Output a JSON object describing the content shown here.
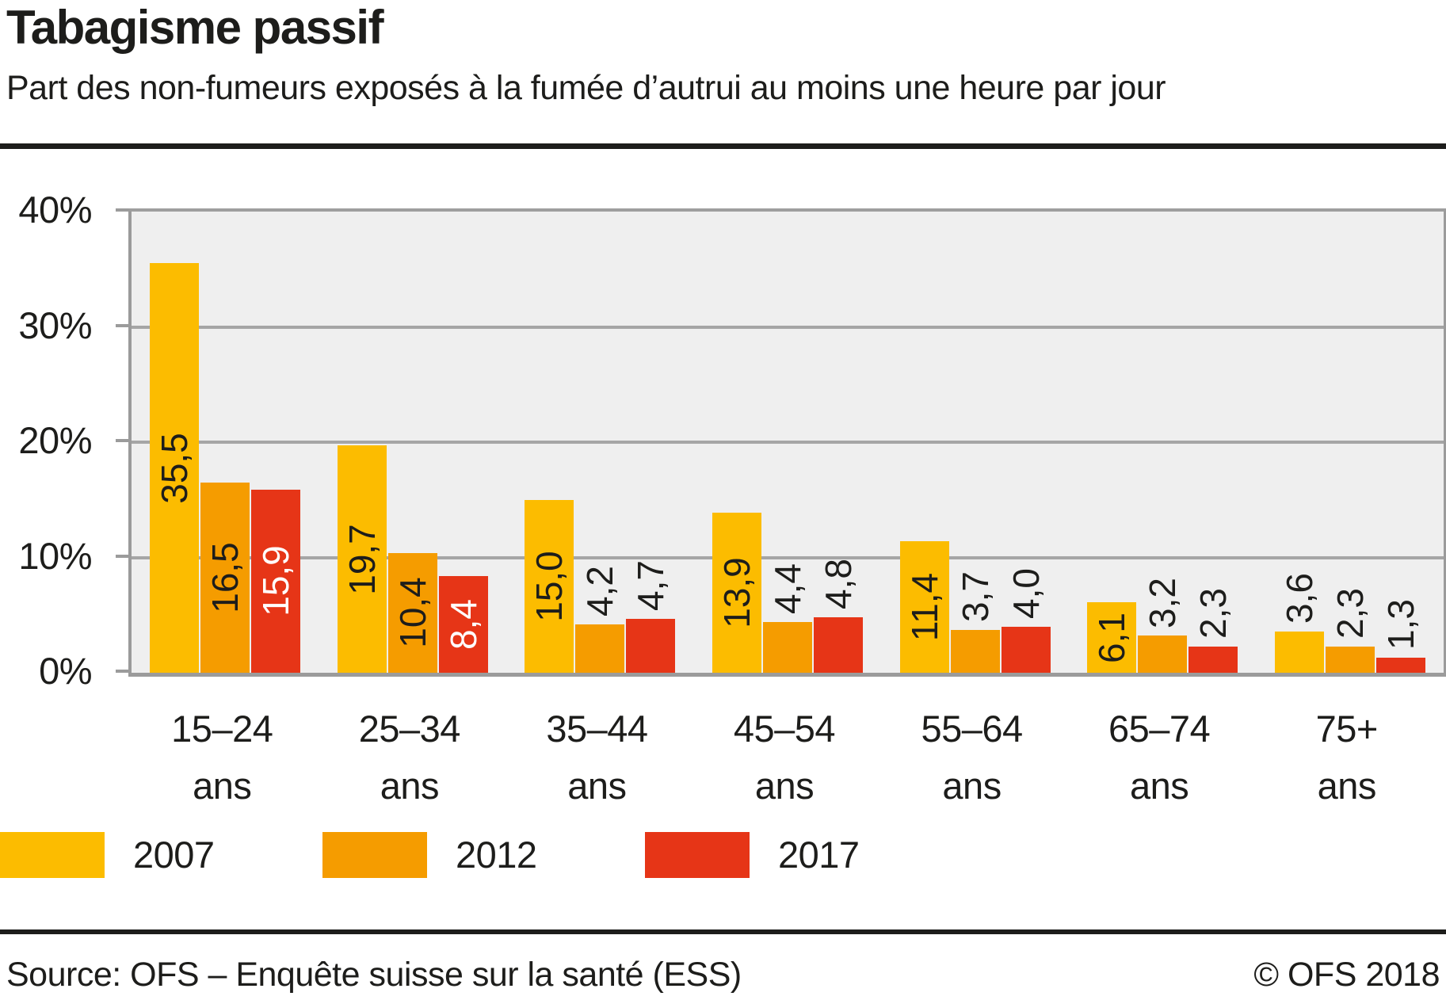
{
  "header": {
    "title": "Tabagisme passif",
    "subtitle": "Part des non-fumeurs exposés à la fumée d’autrui au moins une heure par jour"
  },
  "chart_data": {
    "type": "bar",
    "title": "Tabagisme passif",
    "subtitle": "Part des non-fumeurs exposés à la fumée d’autrui au moins une heure par jour",
    "categories": [
      "15–24 ans",
      "25–34 ans",
      "35–44 ans",
      "45–54 ans",
      "55–64 ans",
      "65–74 ans",
      "75+ ans"
    ],
    "series": [
      {
        "name": "2007",
        "color": "#fcbc00",
        "inside_label_color": "#1d1d1b",
        "values": [
          35.5,
          19.7,
          15.0,
          13.9,
          11.4,
          6.1,
          3.6
        ]
      },
      {
        "name": "2012",
        "color": "#f59c00",
        "inside_label_color": "#1d1d1b",
        "values": [
          16.5,
          10.4,
          4.2,
          4.4,
          3.7,
          3.2,
          2.3
        ]
      },
      {
        "name": "2017",
        "color": "#e63517",
        "inside_label_color": "#ffffff",
        "values": [
          15.9,
          8.4,
          4.7,
          4.8,
          4.0,
          2.3,
          1.3
        ]
      }
    ],
    "ylim": [
      0,
      40
    ],
    "y_ticks": [
      {
        "value": 40,
        "label": "40%"
      },
      {
        "value": 30,
        "label": "30%"
      },
      {
        "value": 20,
        "label": "20%"
      },
      {
        "value": 10,
        "label": "10%"
      },
      {
        "value": 0,
        "label": "0%"
      }
    ],
    "grid": true,
    "legend_position": "bottom-left",
    "value_label_style": "rotated 90° CCW reading bottom-to-top, decimal comma, centered inside bar when value >= threshold, above bar otherwise",
    "inside_label_threshold": 6,
    "plot_background": "#efefef",
    "gridline_color": "#a5a5a5",
    "axis_color": "#9b9b9b"
  },
  "legend": {
    "items": [
      {
        "label": "2007",
        "color": "#fcbc00"
      },
      {
        "label": "2012",
        "color": "#f59c00"
      },
      {
        "label": "2017",
        "color": "#e63517"
      }
    ]
  },
  "footer": {
    "source": "Source: OFS – Enquête suisse sur la santé (ESS)",
    "copyright": "© OFS 2018"
  }
}
